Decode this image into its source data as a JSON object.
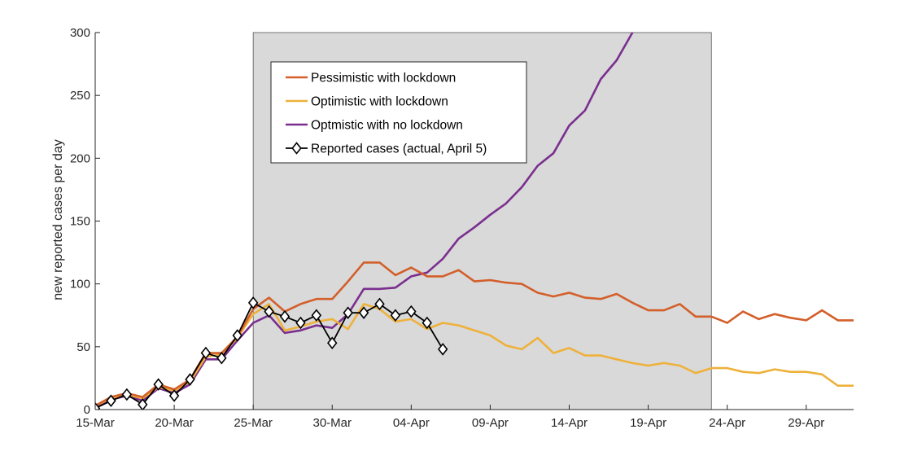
{
  "chart_data": {
    "type": "line",
    "title": "",
    "xlabel": "",
    "ylabel": "new reported cases per day",
    "ylim": [
      0,
      300
    ],
    "xlim": [
      "2020-03-15",
      "2020-05-02"
    ],
    "yticks": [
      0,
      50,
      100,
      150,
      200,
      250,
      300
    ],
    "xticks": [
      "15-Mar",
      "20-Mar",
      "25-Mar",
      "30-Mar",
      "04-Apr",
      "09-Apr",
      "14-Apr",
      "19-Apr",
      "24-Apr",
      "29-Apr"
    ],
    "grid": false,
    "legend_position": "top-left inside shaded region",
    "shaded_region": {
      "x_start": "2020-03-25",
      "x_end": "2020-04-23",
      "color": "#d9d9d9"
    },
    "series": [
      {
        "name": "Pessimistic with lockdown",
        "color": "#d35f2a",
        "marker": "none",
        "x": [
          "2020-03-15",
          "2020-03-16",
          "2020-03-17",
          "2020-03-18",
          "2020-03-19",
          "2020-03-20",
          "2020-03-21",
          "2020-03-22",
          "2020-03-23",
          "2020-03-24",
          "2020-03-25",
          "2020-03-26",
          "2020-03-27",
          "2020-03-28",
          "2020-03-29",
          "2020-03-30",
          "2020-03-31",
          "2020-04-01",
          "2020-04-02",
          "2020-04-03",
          "2020-04-04",
          "2020-04-05",
          "2020-04-06",
          "2020-04-07",
          "2020-04-08",
          "2020-04-09",
          "2020-04-10",
          "2020-04-11",
          "2020-04-12",
          "2020-04-13",
          "2020-04-14",
          "2020-04-15",
          "2020-04-16",
          "2020-04-17",
          "2020-04-18",
          "2020-04-19",
          "2020-04-20",
          "2020-04-21",
          "2020-04-22",
          "2020-04-23",
          "2020-04-24",
          "2020-04-25",
          "2020-04-26",
          "2020-04-27",
          "2020-04-28",
          "2020-04-29",
          "2020-04-30",
          "2020-05-01",
          "2020-05-02"
        ],
        "y": [
          3,
          10,
          13,
          10,
          20,
          16,
          24,
          45,
          45,
          58,
          80,
          89,
          78,
          84,
          88,
          88,
          102,
          117,
          117,
          107,
          113,
          106,
          106,
          111,
          102,
          103,
          101,
          100,
          93,
          90,
          93,
          89,
          88,
          92,
          85,
          79,
          79,
          84,
          74,
          74,
          69,
          78,
          72,
          76,
          73,
          71,
          79,
          71,
          71
        ]
      },
      {
        "name": "Optimistic with lockdown",
        "color": "#eeb13b",
        "marker": "none",
        "x": [
          "2020-03-15",
          "2020-03-16",
          "2020-03-17",
          "2020-03-18",
          "2020-03-19",
          "2020-03-20",
          "2020-03-21",
          "2020-03-22",
          "2020-03-23",
          "2020-03-24",
          "2020-03-25",
          "2020-03-26",
          "2020-03-27",
          "2020-03-28",
          "2020-03-29",
          "2020-03-30",
          "2020-03-31",
          "2020-04-01",
          "2020-04-02",
          "2020-04-03",
          "2020-04-04",
          "2020-04-05",
          "2020-04-06",
          "2020-04-07",
          "2020-04-08",
          "2020-04-09",
          "2020-04-10",
          "2020-04-11",
          "2020-04-12",
          "2020-04-13",
          "2020-04-14",
          "2020-04-15",
          "2020-04-16",
          "2020-04-17",
          "2020-04-18",
          "2020-04-19",
          "2020-04-20",
          "2020-04-21",
          "2020-04-22",
          "2020-04-23",
          "2020-04-24",
          "2020-04-25",
          "2020-04-26",
          "2020-04-27",
          "2020-04-28",
          "2020-04-29",
          "2020-04-30",
          "2020-05-01",
          "2020-05-02"
        ],
        "y": [
          3,
          9,
          12,
          9,
          18,
          15,
          22,
          42,
          44,
          57,
          76,
          84,
          63,
          66,
          70,
          72,
          64,
          84,
          80,
          70,
          72,
          64,
          69,
          67,
          63,
          59,
          51,
          48,
          57,
          45,
          49,
          43,
          43,
          40,
          37,
          35,
          37,
          35,
          29,
          33,
          33,
          30,
          29,
          32,
          30,
          30,
          28,
          19,
          19
        ]
      },
      {
        "name": "Optmistic with no lockdown",
        "color": "#7a2f8f",
        "marker": "none",
        "x": [
          "2020-03-15",
          "2020-03-16",
          "2020-03-17",
          "2020-03-18",
          "2020-03-19",
          "2020-03-20",
          "2020-03-21",
          "2020-03-22",
          "2020-03-23",
          "2020-03-24",
          "2020-03-25",
          "2020-03-26",
          "2020-03-27",
          "2020-03-28",
          "2020-03-29",
          "2020-03-30",
          "2020-03-31",
          "2020-04-01",
          "2020-04-02",
          "2020-04-03",
          "2020-04-04",
          "2020-04-05",
          "2020-04-06",
          "2020-04-07",
          "2020-04-08",
          "2020-04-09",
          "2020-04-10",
          "2020-04-11",
          "2020-04-12",
          "2020-04-13",
          "2020-04-14",
          "2020-04-15",
          "2020-04-16",
          "2020-04-17",
          "2020-04-18",
          "2020-04-19"
        ],
        "y": [
          2,
          8,
          11,
          7,
          17,
          13,
          20,
          40,
          40,
          55,
          69,
          75,
          61,
          63,
          67,
          65,
          76,
          96,
          96,
          97,
          106,
          109,
          120,
          136,
          145,
          155,
          164,
          177,
          194,
          204,
          226,
          238,
          263,
          278,
          300,
          310
        ]
      },
      {
        "name": "Reported cases (actual, April 5)",
        "color": "#000000",
        "marker": "diamond",
        "x": [
          "2020-03-15",
          "2020-03-16",
          "2020-03-17",
          "2020-03-18",
          "2020-03-19",
          "2020-03-20",
          "2020-03-21",
          "2020-03-22",
          "2020-03-23",
          "2020-03-24",
          "2020-03-25",
          "2020-03-26",
          "2020-03-27",
          "2020-03-28",
          "2020-03-29",
          "2020-03-30",
          "2020-03-31",
          "2020-04-01",
          "2020-04-02",
          "2020-04-03",
          "2020-04-04",
          "2020-04-05",
          "2020-04-06"
        ],
        "y": [
          1,
          7,
          12,
          4,
          20,
          11,
          24,
          45,
          41,
          59,
          85,
          78,
          74,
          69,
          75,
          53,
          77,
          77,
          84,
          75,
          78,
          69,
          48
        ]
      }
    ]
  }
}
